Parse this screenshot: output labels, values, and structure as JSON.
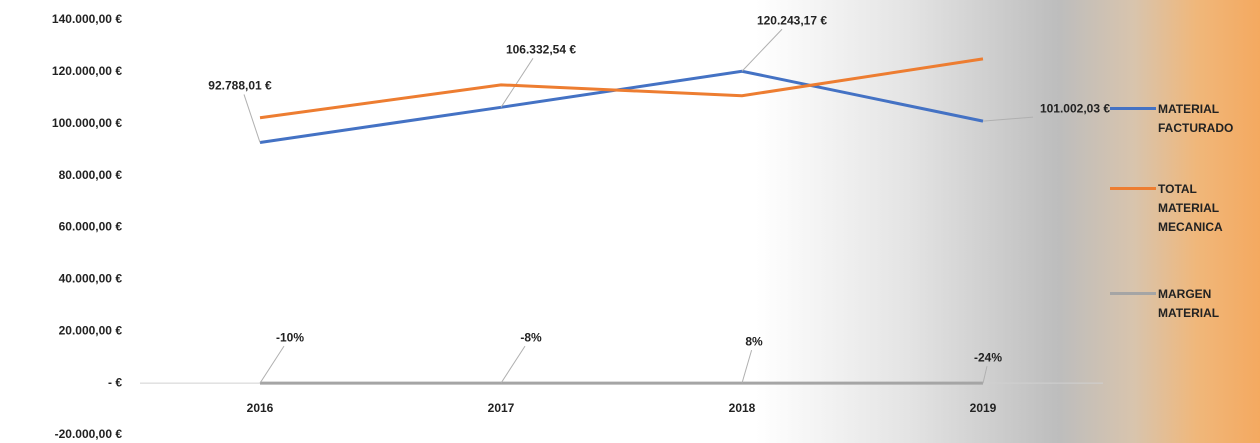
{
  "chart_data": {
    "type": "line",
    "categories": [
      "2016",
      "2017",
      "2018",
      "2019"
    ],
    "series": [
      {
        "name": "MATERIAL FACTURADO",
        "color": "#4472c4",
        "values": [
          92788.01,
          106332.54,
          120243.17,
          101002.03
        ],
        "value_labels": [
          "92.788,01 €",
          "106.332,54 €",
          "120.243,17 €",
          "101.002,03 €"
        ]
      },
      {
        "name": "TOTAL MATERIAL MECANICA",
        "color": "#ed7d31",
        "values": [
          102300,
          115000,
          110800,
          125000
        ]
      },
      {
        "name": "MARGEN MATERIAL",
        "color": "#a5a5a5",
        "values": [
          -10,
          -8,
          8,
          -24
        ],
        "value_labels": [
          "-10%",
          "-8%",
          "8%",
          "-24%"
        ]
      }
    ],
    "ylim": [
      -20000,
      140000
    ],
    "yticks": [
      {
        "value": -20000,
        "label": "-20.000,00 €"
      },
      {
        "value": 0,
        "label": "-   €"
      },
      {
        "value": 20000,
        "label": "20.000,00 €"
      },
      {
        "value": 40000,
        "label": "40.000,00 €"
      },
      {
        "value": 60000,
        "label": "60.000,00 €"
      },
      {
        "value": 80000,
        "label": "80.000,00 €"
      },
      {
        "value": 100000,
        "label": "100.000,00 €"
      },
      {
        "value": 120000,
        "label": "120.000,00 €"
      },
      {
        "value": 140000,
        "label": "140.000,00 €"
      }
    ],
    "grid": false,
    "legend": "right"
  }
}
